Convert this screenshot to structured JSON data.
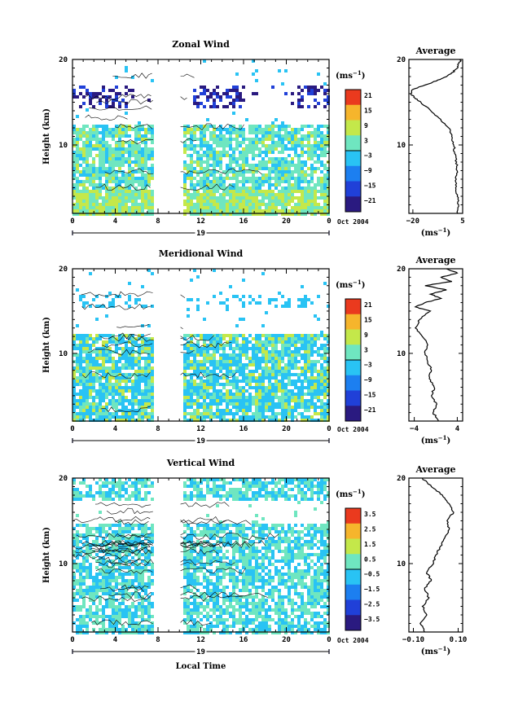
{
  "chart_data": [
    {
      "type": "heatmap",
      "title": "Zonal Wind",
      "ylabel": "Height (km)",
      "ylim": [
        2,
        20
      ],
      "yticks": [
        10,
        20
      ],
      "x": {
        "ticks": [
          "0",
          "4",
          "8",
          "12",
          "16",
          "20",
          "0"
        ],
        "day_label": "19",
        "date_label": "Oct 2004",
        "xlabel": ""
      },
      "data_gap": [
        7.6,
        10.1
      ],
      "colorbar": {
        "unit": "(ms",
        "unit_exp": "−1",
        "unit_close": ")",
        "ticks": [
          "21",
          "15",
          "9",
          "3",
          "−3",
          "−9",
          "−15",
          "−21"
        ]
      },
      "average": {
        "title": "Average",
        "xlabel": "(ms",
        "xlabel_exp": "−1",
        "xlabel_close": ")",
        "xticks": [
          "−20",
          "5"
        ],
        "xlim": [
          -22,
          5
        ],
        "yticks": [
          "10",
          "20"
        ],
        "profile": [
          [
            2,
            2.5
          ],
          [
            3,
            3
          ],
          [
            4,
            2.3
          ],
          [
            5,
            1.5
          ],
          [
            6,
            1.8
          ],
          [
            7,
            2.2
          ],
          [
            8,
            2
          ],
          [
            9,
            1
          ],
          [
            10,
            0.5
          ],
          [
            11,
            -0.5
          ],
          [
            12,
            -2
          ],
          [
            13,
            -6
          ],
          [
            14,
            -11
          ],
          [
            15,
            -16
          ],
          [
            15.5,
            -19
          ],
          [
            16,
            -21
          ],
          [
            16.5,
            -20
          ],
          [
            17,
            -14
          ],
          [
            17.5,
            -8
          ],
          [
            18,
            -3
          ],
          [
            18.5,
            0
          ],
          [
            19,
            2.5
          ],
          [
            19.5,
            3
          ],
          [
            20,
            4
          ]
        ]
      }
    },
    {
      "type": "heatmap",
      "title": "Meridional Wind",
      "ylabel": "Height (km)",
      "ylim": [
        2,
        20
      ],
      "yticks": [
        10,
        20
      ],
      "x": {
        "ticks": [
          "0",
          "4",
          "8",
          "12",
          "16",
          "20",
          "0"
        ],
        "day_label": "19",
        "date_label": "Oct 2004",
        "xlabel": ""
      },
      "data_gap": [
        7.6,
        10.1
      ],
      "colorbar": {
        "unit": "(ms",
        "unit_exp": "−1",
        "unit_close": ")",
        "ticks": [
          "21",
          "15",
          "9",
          "3",
          "−3",
          "−9",
          "−15",
          "−21"
        ]
      },
      "average": {
        "title": "Average",
        "xlabel": "(ms",
        "xlabel_exp": "−1",
        "xlabel_close": ")",
        "xticks": [
          "−4",
          "4"
        ],
        "xlim": [
          -5,
          5
        ],
        "yticks": [
          "10",
          "20"
        ],
        "profile": [
          [
            2,
            0.5
          ],
          [
            3,
            -0.5
          ],
          [
            4,
            0.2
          ],
          [
            5,
            -0.8
          ],
          [
            6,
            -0.3
          ],
          [
            7,
            -1.2
          ],
          [
            8,
            -0.8
          ],
          [
            9,
            -1.5
          ],
          [
            10,
            -2
          ],
          [
            11,
            -1.5
          ],
          [
            12,
            -2.5
          ],
          [
            13,
            -3.8
          ],
          [
            14,
            -3
          ],
          [
            15,
            -1
          ],
          [
            15.5,
            -3.8
          ],
          [
            16,
            -2
          ],
          [
            16.5,
            1
          ],
          [
            17,
            -1
          ],
          [
            17.5,
            2
          ],
          [
            18,
            -2
          ],
          [
            18.5,
            3
          ],
          [
            19,
            1
          ],
          [
            19.5,
            4
          ],
          [
            20,
            2
          ]
        ]
      }
    },
    {
      "type": "heatmap",
      "title": "Vertical Wind",
      "ylabel": "Height (km)",
      "ylim": [
        2,
        20
      ],
      "yticks": [
        10,
        20
      ],
      "x": {
        "ticks": [
          "0",
          "4",
          "8",
          "12",
          "16",
          "20",
          "0"
        ],
        "day_label": "19",
        "date_label": "Oct 2004",
        "xlabel": "Local Time"
      },
      "data_gap": [
        7.6,
        10.1
      ],
      "colorbar": {
        "unit": "(ms",
        "unit_exp": "−1",
        "unit_close": ")",
        "ticks": [
          "3.5",
          "2.5",
          "1.5",
          "0.5",
          "−0.5",
          "−1.5",
          "−2.5",
          "−3.5"
        ]
      },
      "average": {
        "title": "Average",
        "xlabel": "(ms",
        "xlabel_exp": "−1",
        "xlabel_close": ")",
        "xticks": [
          "−0.10",
          "0.10"
        ],
        "xlim": [
          -0.12,
          0.12
        ],
        "yticks": [
          "10",
          "20"
        ],
        "profile": [
          [
            2,
            -0.05
          ],
          [
            3,
            -0.07
          ],
          [
            4,
            -0.04
          ],
          [
            5,
            -0.06
          ],
          [
            6,
            -0.03
          ],
          [
            7,
            -0.05
          ],
          [
            8,
            -0.02
          ],
          [
            9,
            -0.04
          ],
          [
            10,
            -0.01
          ],
          [
            11,
            0.0
          ],
          [
            12,
            0.02
          ],
          [
            13,
            0.04
          ],
          [
            14,
            0.06
          ],
          [
            15,
            0.05
          ],
          [
            16,
            0.08
          ],
          [
            17,
            0.06
          ],
          [
            18,
            0.03
          ],
          [
            19,
            -0.02
          ],
          [
            20,
            -0.06
          ]
        ]
      }
    }
  ]
}
